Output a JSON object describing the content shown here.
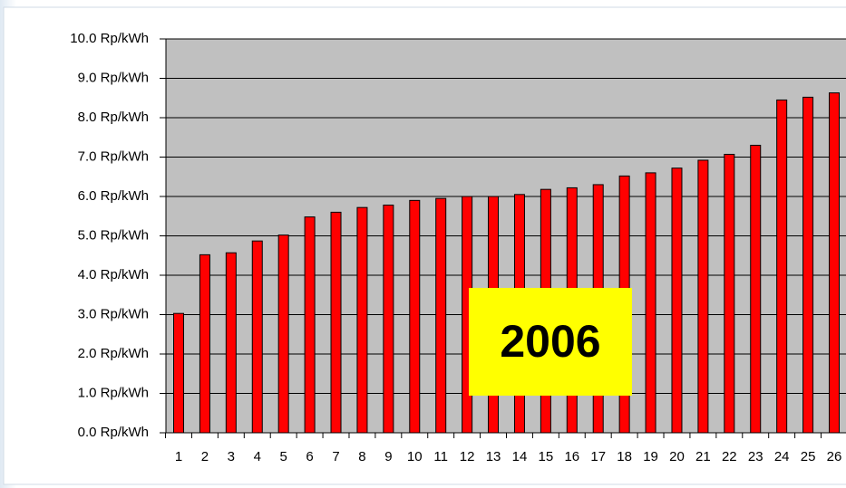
{
  "chart_data": {
    "type": "bar",
    "categories": [
      "1",
      "2",
      "3",
      "4",
      "5",
      "6",
      "7",
      "8",
      "9",
      "10",
      "11",
      "12",
      "13",
      "14",
      "15",
      "16",
      "17",
      "18",
      "19",
      "20",
      "21",
      "22",
      "23",
      "24",
      "25",
      "26"
    ],
    "values": [
      3.03,
      4.52,
      4.57,
      4.87,
      5.02,
      5.48,
      5.6,
      5.72,
      5.78,
      5.9,
      5.95,
      6.0,
      6.0,
      6.05,
      6.18,
      6.22,
      6.3,
      6.52,
      6.6,
      6.72,
      6.92,
      7.07,
      7.3,
      8.45,
      8.52,
      8.63
    ],
    "color": "#ff0000",
    "ylim": [
      0,
      10
    ],
    "yticks": [
      {
        "value": 0,
        "label": "0.0 Rp/kWh"
      },
      {
        "value": 1,
        "label": "1.0 Rp/kWh"
      },
      {
        "value": 2,
        "label": "2.0 Rp/kWh"
      },
      {
        "value": 3,
        "label": "3.0 Rp/kWh"
      },
      {
        "value": 4,
        "label": "4.0 Rp/kWh"
      },
      {
        "value": 5,
        "label": "5.0 Rp/kWh"
      },
      {
        "value": 6,
        "label": "6.0 Rp/kWh"
      },
      {
        "value": 7,
        "label": "7.0 Rp/kWh"
      },
      {
        "value": 8,
        "label": "8.0 Rp/kWh"
      },
      {
        "value": 9,
        "label": "9.0 Rp/kWh"
      },
      {
        "value": 10,
        "label": "10.0 Rp/kWh"
      }
    ],
    "grid": true,
    "annotation": "2006"
  }
}
